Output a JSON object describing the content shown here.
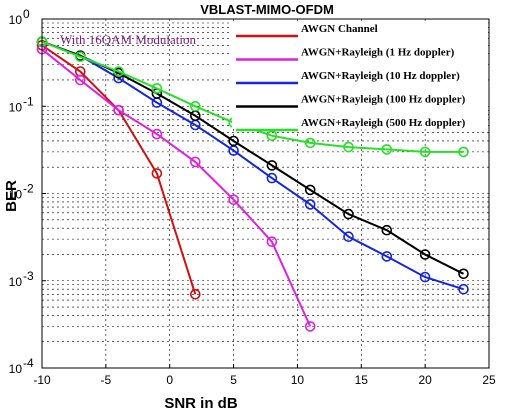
{
  "chart_data": {
    "type": "line",
    "title": "VBLAST-MIMO-OFDM",
    "xlabel": "SNR in dB",
    "ylabel": "BER",
    "xlim": [
      -10,
      25
    ],
    "ylim": [
      0.0001,
      1
    ],
    "yscale": "log",
    "xticks": [
      -10,
      -5,
      0,
      5,
      10,
      15,
      20,
      25
    ],
    "yticks": [
      {
        "value": 1,
        "mantissa": "10",
        "exp": "0"
      },
      {
        "value": 0.1,
        "mantissa": "10",
        "exp": "-1"
      },
      {
        "value": 0.01,
        "mantissa": "10",
        "exp": "-2"
      },
      {
        "value": 0.001,
        "mantissa": "10",
        "exp": "-3"
      },
      {
        "value": 0.0001,
        "mantissa": "10",
        "exp": "-4"
      }
    ],
    "grid": "on",
    "legend": "top-right",
    "annotation": "With 16QAM Modulation",
    "series": [
      {
        "name": "AWGN Channel",
        "color": "#d01010",
        "x": [
          -10,
          -7,
          -4,
          -1,
          2
        ],
        "y": [
          0.5,
          0.25,
          0.09,
          0.017,
          0.0007
        ]
      },
      {
        "name": "AWGN+Rayleigh (1 Hz doppler)",
        "color": "#e020e0",
        "x": [
          -10,
          -7,
          -4,
          -1,
          2,
          5,
          8,
          11
        ],
        "y": [
          0.45,
          0.2,
          0.09,
          0.048,
          0.023,
          0.0085,
          0.0028,
          0.0003
        ]
      },
      {
        "name": "AWGN+Rayleigh (10 Hz doppler)",
        "color": "#1428d8",
        "x": [
          -10,
          -7,
          -4,
          -1,
          2,
          5,
          8,
          11,
          14,
          17,
          20,
          23
        ],
        "y": [
          0.55,
          0.38,
          0.21,
          0.11,
          0.061,
          0.031,
          0.015,
          0.0075,
          0.0032,
          0.0019,
          0.0011,
          0.0008
        ]
      },
      {
        "name": "AWGN+Rayleigh (100 Hz doppler)",
        "color": "#000000",
        "x": [
          -10,
          -7,
          -4,
          -1,
          2,
          5,
          8,
          11,
          14,
          17,
          20,
          23
        ],
        "y": [
          0.55,
          0.38,
          0.24,
          0.14,
          0.078,
          0.04,
          0.021,
          0.011,
          0.0058,
          0.0038,
          0.002,
          0.0012
        ]
      },
      {
        "name": "AWGN+Rayleigh (500 Hz doppler)",
        "color": "#28e028",
        "x": [
          -10,
          -7,
          -4,
          -1,
          2,
          5,
          8,
          11,
          14,
          17,
          20,
          23
        ],
        "y": [
          0.55,
          0.37,
          0.25,
          0.16,
          0.1,
          0.065,
          0.046,
          0.038,
          0.034,
          0.032,
          0.03,
          0.03
        ]
      }
    ]
  }
}
